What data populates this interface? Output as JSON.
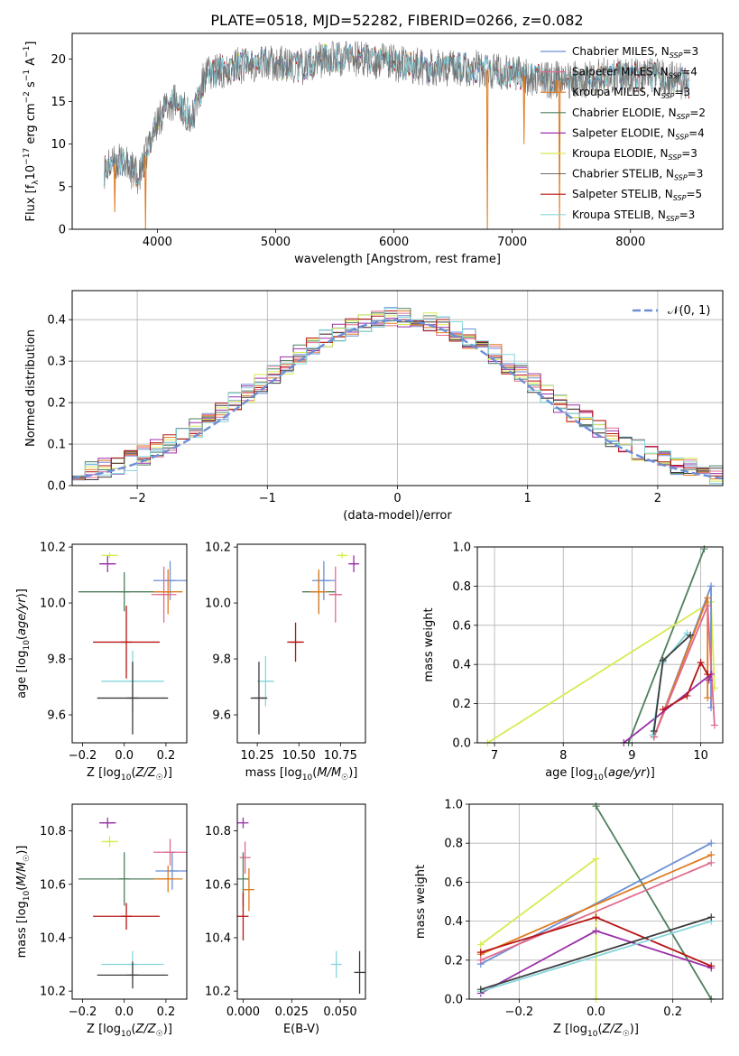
{
  "figure_title": "PLATE=0518, MJD=52282, FIBERID=0266, z=0.082",
  "colors": {
    "chabrier_miles": "#6b8fd6",
    "salpeter_miles": "#e06b8d",
    "kroupa_miles": "#e07a1e",
    "chabrier_elodie": "#4e7f5c",
    "salpeter_elodie": "#9a30a8",
    "kroupa_elodie": "#d8ea52",
    "chabrier_stelib": "#3c3c3c",
    "salpeter_stelib": "#b81414",
    "kroupa_stelib": "#86d6dc"
  },
  "chart_data": [
    {
      "id": "spectrum",
      "type": "line",
      "xlabel": "wavelength [Angstrom, rest frame]",
      "ylabel": "Flux [f_λ10^-17 erg cm^-2 s^-1 A^-1]",
      "xlim": [
        3280,
        8780
      ],
      "ylim": [
        0,
        23
      ],
      "xticks": [
        4000,
        5000,
        6000,
        7000,
        8000
      ],
      "yticks": [
        0,
        5,
        10,
        15,
        20
      ],
      "legend_position": "right",
      "series": [
        {
          "name": "Chabrier MILES, N_SSP=3",
          "color": "#6b8fd6"
        },
        {
          "name": "Salpeter MILES, N_SSP=4",
          "color": "#e06b8d"
        },
        {
          "name": "Kroupa MILES, N_SSP=3",
          "color": "#e07a1e"
        },
        {
          "name": "Chabrier ELODIE, N_SSP=2",
          "color": "#4e7f5c"
        },
        {
          "name": "Salpeter ELODIE, N_SSP=4",
          "color": "#9a30a8"
        },
        {
          "name": "Kroupa ELODIE, N_SSP=3",
          "color": "#d8ea52"
        },
        {
          "name": "Chabrier STELIB, N_SSP=3",
          "color": "#3c3c3c"
        },
        {
          "name": "Salpeter STELIB, N_SSP=5",
          "color": "#b81414"
        },
        {
          "name": "Kroupa STELIB, N_SSP=3",
          "color": "#86d6dc"
        }
      ],
      "continuum": {
        "x": [
          3550,
          3700,
          3850,
          3950,
          4050,
          4150,
          4300,
          4400,
          4600,
          4800,
          5000,
          5200,
          5400,
          5700,
          6000,
          6300,
          6600,
          6900,
          7100,
          7300,
          7500,
          7800,
          8100,
          8400,
          8500
        ],
        "y": [
          7,
          8,
          6,
          11,
          14,
          15,
          13,
          18,
          19,
          19.5,
          19.5,
          19,
          20,
          20,
          19.5,
          19,
          19,
          18.5,
          18,
          17.5,
          17.5,
          18,
          18,
          17.5,
          17
        ]
      },
      "dips": [
        {
          "x": 3900,
          "y": 0
        },
        {
          "x": 6790,
          "y": 0
        },
        {
          "x": 7400,
          "y": 0
        },
        {
          "x": 7100,
          "y": 10
        },
        {
          "x": 7370,
          "y": 16
        },
        {
          "x": 3640,
          "y": 2
        }
      ]
    },
    {
      "id": "residual_hist",
      "type": "line",
      "xlabel": "(data-model)/error",
      "ylabel": "Normed distribution",
      "xlim": [
        -2.5,
        2.5
      ],
      "ylim": [
        0,
        0.47
      ],
      "xticks": [
        -2,
        -1,
        0,
        1,
        2
      ],
      "yticks": [
        0.0,
        0.1,
        0.2,
        0.3,
        0.4
      ],
      "grid": true,
      "legend_position": "top-right",
      "gaussian_label": "𝒩(0, 1)",
      "gaussian_color": "#6b8fd6"
    },
    {
      "id": "age_vs_Z",
      "type": "scatter",
      "xlabel": "Z [log10(Z/Z☉)]",
      "ylabel": "age  [log10(age/yr)]",
      "xlim": [
        -0.25,
        0.3
      ],
      "ylim": [
        9.5,
        10.21
      ],
      "xticks": [
        -0.2,
        0.0,
        0.2
      ],
      "yticks": [
        9.6,
        9.8,
        10.0,
        10.2
      ],
      "points": [
        {
          "x": -0.08,
          "y": 10.14,
          "xerr": 0.04,
          "yerr": 0.03,
          "color": "#9a30a8"
        },
        {
          "x": -0.07,
          "y": 10.17,
          "xerr": 0.04,
          "yerr": 0.01,
          "color": "#d8ea52"
        },
        {
          "x": 0.0,
          "y": 10.04,
          "xerr": 0.22,
          "yerr": 0.07,
          "color": "#4e7f5c"
        },
        {
          "x": 0.22,
          "y": 10.08,
          "xerr": 0.08,
          "yerr": 0.07,
          "color": "#6b8fd6"
        },
        {
          "x": 0.21,
          "y": 10.04,
          "xerr": 0.07,
          "yerr": 0.08,
          "color": "#e07a1e"
        },
        {
          "x": 0.19,
          "y": 10.03,
          "xerr": 0.06,
          "yerr": 0.1,
          "color": "#e06b8d"
        },
        {
          "x": 0.01,
          "y": 9.86,
          "xerr": 0.16,
          "yerr": 0.13,
          "color": "#b81414"
        },
        {
          "x": 0.04,
          "y": 9.72,
          "xerr": 0.15,
          "yerr": 0.11,
          "color": "#86d6dc"
        },
        {
          "x": 0.04,
          "y": 9.66,
          "xerr": 0.17,
          "yerr": 0.13,
          "color": "#3c3c3c"
        }
      ]
    },
    {
      "id": "age_vs_mass",
      "type": "scatter",
      "xlabel": "mass [log10(M/M☉)]",
      "ylabel": "",
      "xlim": [
        10.13,
        10.9
      ],
      "ylim": [
        9.5,
        10.21
      ],
      "xticks": [
        10.25,
        10.5,
        10.75
      ],
      "yticks": [
        9.6,
        9.8,
        10.0,
        10.2
      ],
      "points": [
        {
          "x": 10.83,
          "y": 10.14,
          "xerr": 0.02,
          "yerr": 0.03,
          "color": "#9a30a8"
        },
        {
          "x": 10.76,
          "y": 10.17,
          "xerr": 0.02,
          "yerr": 0.01,
          "color": "#d8ea52"
        },
        {
          "x": 10.62,
          "y": 10.04,
          "xerr": 0.1,
          "yerr": 0.07,
          "color": "#4e7f5c"
        },
        {
          "x": 10.65,
          "y": 10.08,
          "xerr": 0.07,
          "yerr": 0.07,
          "color": "#6b8fd6"
        },
        {
          "x": 10.62,
          "y": 10.04,
          "xerr": 0.05,
          "yerr": 0.08,
          "color": "#e07a1e"
        },
        {
          "x": 10.72,
          "y": 10.03,
          "xerr": 0.04,
          "yerr": 0.1,
          "color": "#e06b8d"
        },
        {
          "x": 10.48,
          "y": 9.86,
          "xerr": 0.05,
          "yerr": 0.07,
          "color": "#b81414"
        },
        {
          "x": 10.3,
          "y": 9.72,
          "xerr": 0.05,
          "yerr": 0.09,
          "color": "#86d6dc"
        },
        {
          "x": 10.26,
          "y": 9.66,
          "xerr": 0.05,
          "yerr": 0.13,
          "color": "#3c3c3c"
        }
      ]
    },
    {
      "id": "weight_vs_age",
      "type": "line",
      "xlabel": "age  [log10(age/yr)]",
      "ylabel": "mass weight",
      "xlim": [
        6.75,
        10.32
      ],
      "ylim": [
        0,
        1.0
      ],
      "xticks": [
        7,
        8,
        9,
        10
      ],
      "yticks": [
        0.0,
        0.2,
        0.4,
        0.6,
        0.8,
        1.0
      ],
      "grid": true,
      "series": [
        {
          "color": "#4e7f5c",
          "x": [
            8.95,
            10.05
          ],
          "y": [
            0.0,
            0.99
          ]
        },
        {
          "color": "#d8ea52",
          "x": [
            6.9,
            10.15,
            10.2
          ],
          "y": [
            0.0,
            0.72,
            0.28
          ]
        },
        {
          "color": "#6b8fd6",
          "x": [
            9.32,
            10.15,
            10.15
          ],
          "y": [
            0.03,
            0.8,
            0.18
          ]
        },
        {
          "color": "#e07a1e",
          "x": [
            9.32,
            10.1,
            10.1
          ],
          "y": [
            0.03,
            0.74,
            0.23
          ]
        },
        {
          "color": "#e06b8d",
          "x": [
            9.32,
            10.1,
            10.2
          ],
          "y": [
            0.03,
            0.7,
            0.09
          ]
        },
        {
          "color": "#9a30a8",
          "x": [
            8.88,
            10.15,
            10.12
          ],
          "y": [
            0.0,
            0.35,
            0.32
          ]
        },
        {
          "color": "#b81414",
          "x": [
            9.45,
            9.8,
            10.0,
            10.1
          ],
          "y": [
            0.17,
            0.24,
            0.41,
            0.35
          ]
        },
        {
          "color": "#86d6dc",
          "x": [
            9.3,
            9.45,
            9.8
          ],
          "y": [
            0.04,
            0.41,
            0.56
          ]
        },
        {
          "color": "#3c3c3c",
          "x": [
            9.32,
            9.45,
            9.85
          ],
          "y": [
            0.06,
            0.42,
            0.55
          ]
        }
      ]
    },
    {
      "id": "mass_vs_Z",
      "type": "scatter",
      "xlabel": "Z [log10(Z/Z☉)]",
      "ylabel": "mass [log10(M/M☉)]",
      "xlim": [
        -0.25,
        0.3
      ],
      "ylim": [
        10.17,
        10.9
      ],
      "xticks": [
        -0.2,
        0.0,
        0.2
      ],
      "yticks": [
        10.2,
        10.4,
        10.6,
        10.8
      ],
      "points": [
        {
          "x": -0.08,
          "y": 10.83,
          "xerr": 0.04,
          "yerr": 0.02,
          "color": "#9a30a8"
        },
        {
          "x": -0.07,
          "y": 10.76,
          "xerr": 0.04,
          "yerr": 0.02,
          "color": "#d8ea52"
        },
        {
          "x": 0.22,
          "y": 10.72,
          "xerr": 0.08,
          "yerr": 0.05,
          "color": "#e06b8d"
        },
        {
          "x": 0.0,
          "y": 10.62,
          "xerr": 0.22,
          "yerr": 0.1,
          "color": "#4e7f5c"
        },
        {
          "x": 0.23,
          "y": 10.65,
          "xerr": 0.08,
          "yerr": 0.07,
          "color": "#6b8fd6"
        },
        {
          "x": 0.21,
          "y": 10.62,
          "xerr": 0.07,
          "yerr": 0.05,
          "color": "#e07a1e"
        },
        {
          "x": 0.01,
          "y": 10.48,
          "xerr": 0.16,
          "yerr": 0.05,
          "color": "#b81414"
        },
        {
          "x": 0.04,
          "y": 10.3,
          "xerr": 0.15,
          "yerr": 0.05,
          "color": "#86d6dc"
        },
        {
          "x": 0.04,
          "y": 10.26,
          "xerr": 0.17,
          "yerr": 0.05,
          "color": "#3c3c3c"
        }
      ]
    },
    {
      "id": "mass_vs_ebv",
      "type": "scatter",
      "xlabel": "E(B-V)",
      "ylabel": "",
      "xlim": [
        -0.003,
        0.063
      ],
      "ylim": [
        10.17,
        10.9
      ],
      "xticks": [
        0.0,
        0.025,
        0.05
      ],
      "yticks": [
        10.2,
        10.4,
        10.6,
        10.8
      ],
      "points": [
        {
          "x": 0.0,
          "y": 10.83,
          "xerr": 0.0,
          "yerr": 0.02,
          "color": "#9a30a8"
        },
        {
          "x": 0.001,
          "y": 10.7,
          "xerr": 0.0,
          "yerr": 0.06,
          "color": "#e06b8d"
        },
        {
          "x": 0.0,
          "y": 10.62,
          "xerr": 0.0,
          "yerr": 0.1,
          "color": "#4e7f5c"
        },
        {
          "x": 0.003,
          "y": 10.58,
          "xerr": 0.0,
          "yerr": 0.08,
          "color": "#e07a1e"
        },
        {
          "x": 0.0,
          "y": 10.48,
          "xerr": 0.0,
          "yerr": 0.09,
          "color": "#b81414"
        },
        {
          "x": 0.048,
          "y": 10.3,
          "xerr": 0.0,
          "yerr": 0.05,
          "color": "#86d6dc"
        },
        {
          "x": 0.06,
          "y": 10.27,
          "xerr": 0.0,
          "yerr": 0.08,
          "color": "#3c3c3c"
        }
      ]
    },
    {
      "id": "weight_vs_Z",
      "type": "line",
      "xlabel": "Z [log10(Z/Z☉)]",
      "ylabel": "mass weight",
      "xlim": [
        -0.33,
        0.33
      ],
      "ylim": [
        0,
        1.0
      ],
      "xticks": [
        -0.2,
        0.0,
        0.2
      ],
      "yticks": [
        0.0,
        0.2,
        0.4,
        0.6,
        0.8,
        1.0
      ],
      "grid": true,
      "series": [
        {
          "color": "#4e7f5c",
          "x": [
            0.0,
            0.3
          ],
          "y": [
            0.99,
            0.0
          ]
        },
        {
          "color": "#d8ea52",
          "x": [
            -0.3,
            0.0,
            0.0
          ],
          "y": [
            0.28,
            0.72,
            0.0
          ]
        },
        {
          "color": "#6b8fd6",
          "x": [
            -0.3,
            0.3
          ],
          "y": [
            0.18,
            0.8
          ]
        },
        {
          "color": "#e07a1e",
          "x": [
            -0.3,
            0.3
          ],
          "y": [
            0.23,
            0.74
          ]
        },
        {
          "color": "#e06b8d",
          "x": [
            -0.3,
            0.3
          ],
          "y": [
            0.2,
            0.7
          ]
        },
        {
          "color": "#9a30a8",
          "x": [
            -0.3,
            0.0,
            0.3
          ],
          "y": [
            0.03,
            0.35,
            0.16
          ]
        },
        {
          "color": "#b81414",
          "x": [
            -0.3,
            0.0,
            0.3
          ],
          "y": [
            0.24,
            0.42,
            0.17
          ]
        },
        {
          "color": "#86d6dc",
          "x": [
            -0.3,
            0.3
          ],
          "y": [
            0.04,
            0.4
          ]
        },
        {
          "color": "#3c3c3c",
          "x": [
            -0.3,
            0.3
          ],
          "y": [
            0.05,
            0.42
          ]
        }
      ]
    }
  ]
}
